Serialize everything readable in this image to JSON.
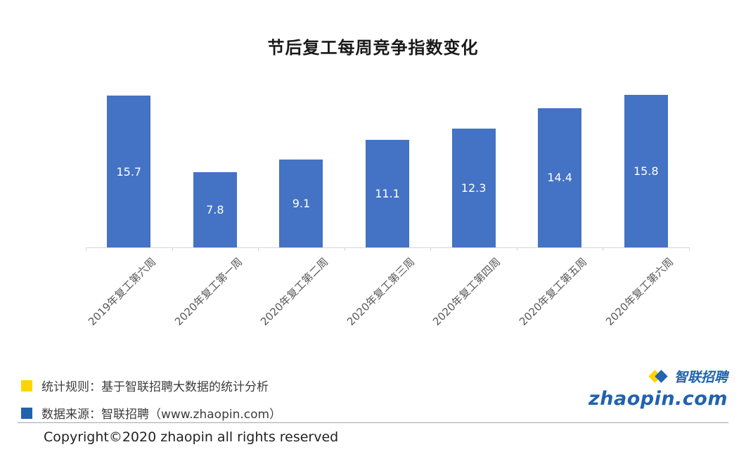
{
  "chart_data": {
    "type": "bar",
    "title": "节后复工每周竞争指数变化",
    "categories": [
      "2019年复工第六周",
      "2020年复工第一周",
      "2020年复工第二周",
      "2020年复工第三周",
      "2020年复工第四周",
      "2020年复工第五周",
      "2020年复工第六周"
    ],
    "values": [
      15.7,
      7.8,
      9.1,
      11.1,
      12.3,
      14.4,
      15.8
    ],
    "xlabel": "",
    "ylabel": "",
    "ylim": [
      0,
      16.5
    ],
    "grid": false,
    "legend_position": "none",
    "bar_color": "#4472c4",
    "value_label_color": "#ffffff"
  },
  "footer": {
    "legend": [
      {
        "color": "#ffd400",
        "text": "统计规则：基于智联招聘大数据的统计分析"
      },
      {
        "color": "#2261ae",
        "text": "数据来源：智联招聘（www.zhaopin.com）"
      }
    ],
    "copyright": "Copyright©2020 zhaopin all rights reserved"
  },
  "logo": {
    "brand": "智联招聘",
    "domain": "zhaopin.com"
  }
}
